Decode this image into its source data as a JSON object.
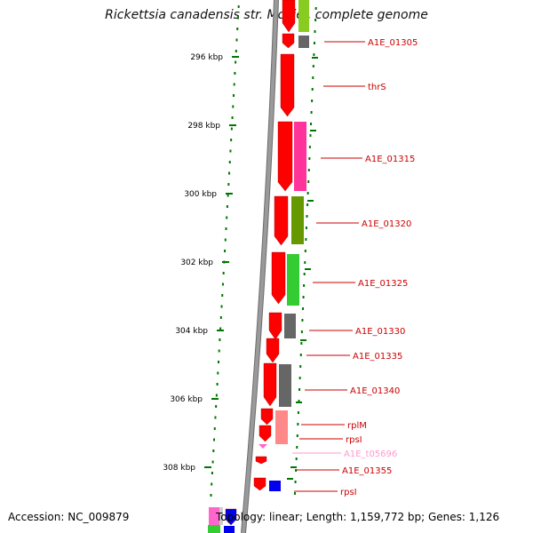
{
  "title": "Rickettsia canadensis str. McKiel, complete genome",
  "accession": "Accession: NC_009879",
  "summary": "Topology: linear; Length: 1,159,772 bp; Genes: 1,126",
  "colors": {
    "cds": "#ff0000",
    "trna": "#ff66cc",
    "backbone": "#9a9a9a",
    "tick": "#007700",
    "label_line": "#cc0000",
    "pseudo_label": "#ff99cc"
  },
  "kbp_labels": [
    "296 kbp",
    "298 kbp",
    "300 kbp",
    "302 kbp",
    "304 kbp",
    "306 kbp",
    "308 kbp"
  ],
  "gene_labels": [
    "A1E_01305",
    "thrS",
    "A1E_01315",
    "A1E_01320",
    "A1E_01325",
    "A1E_01330",
    "A1E_01335",
    "A1E_01340",
    "rplM",
    "rpsI",
    "A1E_t05696",
    "A1E_01355",
    "rpsI"
  ]
}
